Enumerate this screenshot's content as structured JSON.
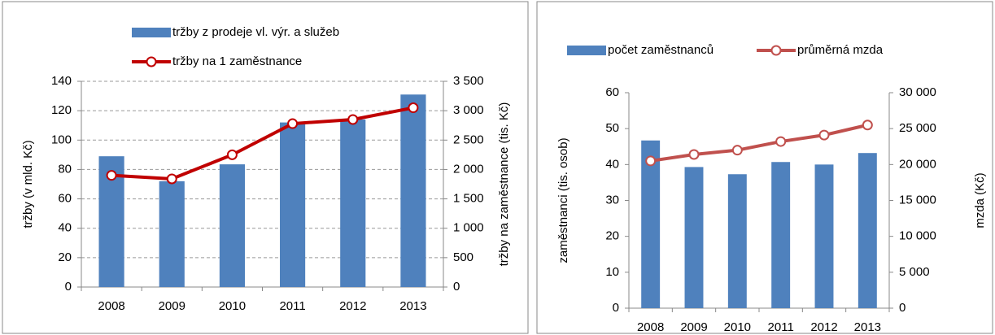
{
  "chart_data": [
    {
      "type": "bar",
      "categories": [
        "2008",
        "2009",
        "2010",
        "2011",
        "2012",
        "2013"
      ],
      "y_label": "tržby (v mld. Kč)",
      "y2_label": "tržby na zaměstnance (tis. Kč)",
      "ylim": [
        0,
        140
      ],
      "yticks": [
        0,
        20,
        40,
        60,
        80,
        100,
        120,
        140
      ],
      "y2lim": [
        0,
        3500
      ],
      "y2ticks": [
        0,
        {
          "value": 500,
          "label": "500"
        },
        {
          "value": 1000,
          "label": "1 000"
        },
        {
          "value": 1500,
          "label": "1 500"
        },
        {
          "value": 2000,
          "label": "2 000"
        },
        {
          "value": 2500,
          "label": "2 500"
        },
        {
          "value": 3000,
          "label": "3 000"
        },
        {
          "value": 3500,
          "label": "3 500"
        }
      ],
      "grid": true,
      "legend": "top-stacked",
      "series": [
        {
          "name": "tržby z prodeje vl. výr. a služeb",
          "color": "#4f81bd",
          "values": [
            89,
            72,
            83.5,
            112,
            114,
            131
          ]
        },
        {
          "name": "tržby na 1 zaměstnance",
          "color": "#c00000",
          "axis": "y2",
          "values": [
            1900,
            1840,
            2250,
            2780,
            2850,
            3050
          ]
        }
      ]
    },
    {
      "type": "bar",
      "categories": [
        "2008",
        "2009",
        "2010",
        "2011",
        "2012",
        "2013"
      ],
      "y_label": "zaměstnanci (tis. osob)",
      "y2_label": "mzda (Kč)",
      "ylim": [
        0,
        60
      ],
      "yticks": [
        0,
        10,
        20,
        30,
        40,
        50,
        60
      ],
      "y2lim": [
        0,
        30000
      ],
      "y2ticks": [
        0,
        {
          "value": 5000,
          "label": "5 000"
        },
        {
          "value": 10000,
          "label": "10 000"
        },
        {
          "value": 15000,
          "label": "15 000"
        },
        {
          "value": 20000,
          "label": "20 000"
        },
        {
          "value": 25000,
          "label": "25 000"
        },
        {
          "value": 30000,
          "label": "30 000"
        }
      ],
      "grid": false,
      "legend": "top-row",
      "series": [
        {
          "name": "počet zaměstnanců",
          "color": "#4f81bd",
          "values": [
            46.7,
            39.3,
            37.3,
            40.7,
            40,
            43.2
          ]
        },
        {
          "name": "průměrná mzda",
          "color": "#c0504d",
          "axis": "y2",
          "values": [
            20500,
            21400,
            22000,
            23200,
            24100,
            25500
          ]
        }
      ]
    }
  ]
}
